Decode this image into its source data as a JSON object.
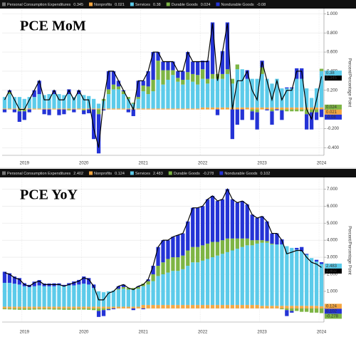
{
  "chart_data": [
    {
      "type": "bar",
      "title": "PCE MoM",
      "ylabel": "Percent/Percentage Point",
      "categories": [
        null,
        null,
        null,
        null,
        "2019",
        null,
        null,
        null,
        null,
        null,
        null,
        null,
        null,
        null,
        null,
        null,
        "2020",
        null,
        null,
        null,
        null,
        null,
        null,
        null,
        null,
        null,
        null,
        null,
        "2021",
        null,
        null,
        null,
        null,
        null,
        null,
        null,
        null,
        null,
        null,
        null,
        "2022",
        null,
        null,
        null,
        null,
        null,
        null,
        null,
        null,
        null,
        null,
        null,
        "2023",
        null,
        null,
        null,
        null,
        null,
        null,
        null,
        null,
        null,
        null,
        null,
        "2024"
      ],
      "ylim": [
        -0.48,
        1.04
      ],
      "yticks": [
        {
          "value": -0.4,
          "label": "-0.400"
        },
        {
          "value": -0.2,
          "label": "-0.200"
        },
        {
          "value": 0,
          "label": "0.000"
        },
        {
          "value": 0.2,
          "label": "0.200"
        },
        {
          "value": 0.4,
          "label": "0.400"
        },
        {
          "value": 0.6,
          "label": "0.600"
        },
        {
          "value": 0.8,
          "label": "0.800"
        },
        {
          "value": 1,
          "label": "1.000"
        }
      ],
      "grid": true,
      "series": [
        {
          "name": "Personal Consumption Expenditures",
          "kind": "line",
          "color": "#000000",
          "values": [
            0.1,
            0.2,
            0.1,
            0.0,
            0.0,
            0.1,
            0.2,
            0.3,
            0.1,
            0.1,
            0.2,
            0.1,
            0.1,
            0.2,
            0.1,
            0.2,
            0.1,
            0.1,
            -0.2,
            -0.4,
            0.1,
            0.4,
            0.4,
            0.3,
            0.2,
            0.1,
            0.0,
            0.3,
            0.3,
            0.4,
            0.6,
            0.6,
            0.5,
            0.5,
            0.5,
            0.4,
            0.4,
            0.6,
            0.5,
            0.5,
            0.5,
            0.5,
            0.9,
            0.3,
            0.6,
            0.9,
            0.0,
            0.3,
            0.3,
            0.4,
            0.2,
            0.1,
            0.5,
            0.3,
            0.1,
            0.3,
            0.1,
            0.2,
            0.2,
            0.4,
            0.4,
            0.0,
            -0.1,
            0.1,
            0.345
          ]
        },
        {
          "name": "Nonprofits",
          "color": "#f5a742",
          "values": [
            0.01,
            0.01,
            0.01,
            0.01,
            0.01,
            0.01,
            0.01,
            0.01,
            0.01,
            0.01,
            0.01,
            0.01,
            0.01,
            0.01,
            0.01,
            0.01,
            0.01,
            0.01,
            0.01,
            0.01,
            0.01,
            0.01,
            0.01,
            0.01,
            0.01,
            0.01,
            0.01,
            0.01,
            0.01,
            0.01,
            0.01,
            0.01,
            0.01,
            0.01,
            0.01,
            0.01,
            0.01,
            0.01,
            0.01,
            0.01,
            0.02,
            0.02,
            0.02,
            0.02,
            0.02,
            0.02,
            0.02,
            0.02,
            0.02,
            0.02,
            0.02,
            0.02,
            0.02,
            0.02,
            0.02,
            0.02,
            0.02,
            0.02,
            0.02,
            0.02,
            0.02,
            0.02,
            0.02,
            0.02,
            0.021
          ]
        },
        {
          "name": "Services",
          "color": "#5ccbea",
          "values": [
            0.12,
            0.15,
            0.12,
            0.12,
            0.1,
            0.12,
            0.12,
            0.15,
            0.14,
            0.15,
            0.15,
            0.15,
            0.14,
            0.15,
            0.12,
            0.15,
            0.14,
            0.13,
            0.1,
            0.05,
            0.08,
            0.15,
            0.2,
            0.2,
            0.15,
            0.1,
            0.05,
            0.1,
            0.18,
            0.15,
            0.18,
            0.3,
            0.25,
            0.3,
            0.35,
            0.28,
            0.25,
            0.3,
            0.28,
            0.25,
            0.3,
            0.25,
            0.3,
            0.3,
            0.3,
            0.35,
            0.25,
            0.4,
            0.4,
            0.3,
            0.3,
            0.3,
            0.35,
            0.3,
            0.25,
            0.3,
            0.2,
            0.2,
            0.2,
            0.3,
            0.3,
            0.2,
            0.1,
            0.2,
            0.38
          ]
        },
        {
          "name": "Durable Goods",
          "color": "#7db544",
          "values": [
            0.0,
            0.02,
            0.0,
            -0.02,
            -0.02,
            0.0,
            0.0,
            0.0,
            0.0,
            0.0,
            0.0,
            0.0,
            0.0,
            -0.01,
            0.0,
            0.0,
            -0.01,
            0.0,
            0.0,
            -0.05,
            0.02,
            0.05,
            0.05,
            0.03,
            0.03,
            0.02,
            0.01,
            0.02,
            0.06,
            0.08,
            0.12,
            0.2,
            0.15,
            0.1,
            0.05,
            0.04,
            0.05,
            0.08,
            0.08,
            0.1,
            0.1,
            0.05,
            0.05,
            0.05,
            0.05,
            0.05,
            0.05,
            0.05,
            0.0,
            0.0,
            -0.02,
            -0.03,
            0.07,
            0.0,
            -0.02,
            0.0,
            -0.01,
            -0.02,
            -0.02,
            -0.02,
            -0.02,
            -0.05,
            -0.03,
            -0.03,
            0.024
          ]
        },
        {
          "name": "Nondurable Goods",
          "color": "#2433d6",
          "values": [
            -0.03,
            0.02,
            -0.03,
            -0.11,
            -0.09,
            -0.03,
            0.07,
            0.14,
            -0.05,
            -0.06,
            0.04,
            -0.06,
            -0.05,
            0.05,
            -0.03,
            0.04,
            -0.04,
            -0.04,
            -0.31,
            -0.41,
            -0.01,
            0.19,
            0.14,
            0.06,
            0.01,
            -0.03,
            -0.07,
            0.17,
            0.05,
            0.16,
            0.29,
            0.09,
            0.09,
            0.09,
            0.09,
            0.07,
            0.09,
            0.21,
            0.13,
            0.14,
            0.09,
            0.19,
            0.54,
            -0.06,
            0.24,
            0.49,
            -0.31,
            -0.16,
            -0.11,
            0.09,
            -0.09,
            -0.18,
            0.07,
            -0.01,
            -0.14,
            -0.01,
            -0.1,
            0.01,
            0.01,
            0.11,
            0.11,
            -0.16,
            -0.18,
            -0.08,
            -0.08
          ]
        }
      ]
    },
    {
      "type": "bar",
      "title": "PCE YoY",
      "ylabel": "Percent/Percentage Point",
      "categories": [
        null,
        null,
        null,
        null,
        "2019",
        null,
        null,
        null,
        null,
        null,
        null,
        null,
        null,
        null,
        null,
        null,
        "2020",
        null,
        null,
        null,
        null,
        null,
        null,
        null,
        null,
        null,
        null,
        null,
        "2021",
        null,
        null,
        null,
        null,
        null,
        null,
        null,
        null,
        null,
        null,
        null,
        "2022",
        null,
        null,
        null,
        null,
        null,
        null,
        null,
        null,
        null,
        null,
        null,
        "2023",
        null,
        null,
        null,
        null,
        null,
        null,
        null,
        null,
        null,
        null,
        null,
        "2024"
      ],
      "ylim": [
        -0.8,
        7.6
      ],
      "yticks": [
        {
          "value": 0,
          "label": "0.000"
        },
        {
          "value": 1,
          "label": "1.000"
        },
        {
          "value": 2,
          "label": "2.000"
        },
        {
          "value": 3,
          "label": "3.000"
        },
        {
          "value": 4,
          "label": "4.000"
        },
        {
          "value": 5,
          "label": "5.000"
        },
        {
          "value": 6,
          "label": "6.000"
        },
        {
          "value": 7,
          "label": "7.000"
        }
      ],
      "grid": true,
      "series": [
        {
          "name": "Personal Consumption Expenditures",
          "kind": "line",
          "color": "#000000",
          "values": [
            2.1,
            2.0,
            1.8,
            1.7,
            1.4,
            1.3,
            1.5,
            1.6,
            1.4,
            1.4,
            1.4,
            1.4,
            1.3,
            1.4,
            1.5,
            1.6,
            1.8,
            1.7,
            1.3,
            0.5,
            0.5,
            0.9,
            1.0,
            1.3,
            1.4,
            1.2,
            1.1,
            1.3,
            1.4,
            1.7,
            2.5,
            3.6,
            4.0,
            4.0,
            4.2,
            4.3,
            4.4,
            5.1,
            5.9,
            5.9,
            6.0,
            6.4,
            6.6,
            6.3,
            6.4,
            7.0,
            6.4,
            6.2,
            6.3,
            6.1,
            5.5,
            5.3,
            5.4,
            5.1,
            4.4,
            4.4,
            4.0,
            3.2,
            3.3,
            3.4,
            3.4,
            3.0,
            2.7,
            2.6,
            2.402
          ]
        },
        {
          "name": "Nonprofits",
          "color": "#f5a742",
          "values": [
            0.1,
            0.1,
            0.1,
            0.1,
            0.1,
            0.1,
            0.1,
            0.1,
            0.1,
            0.1,
            0.1,
            0.1,
            0.1,
            0.1,
            0.1,
            0.1,
            0.1,
            0.1,
            0.1,
            0.1,
            0.1,
            0.1,
            0.1,
            0.1,
            0.1,
            0.1,
            0.1,
            0.1,
            0.2,
            0.2,
            0.2,
            0.2,
            0.2,
            0.2,
            0.2,
            0.2,
            0.2,
            0.2,
            0.2,
            0.2,
            0.2,
            0.2,
            0.2,
            0.2,
            0.2,
            0.2,
            0.2,
            0.2,
            0.2,
            0.2,
            0.2,
            0.2,
            0.15,
            0.15,
            0.15,
            0.15,
            0.15,
            0.15,
            0.15,
            0.15,
            0.15,
            0.15,
            0.15,
            0.15,
            0.124
          ]
        },
        {
          "name": "Services",
          "color": "#5ccbea",
          "values": [
            1.4,
            1.4,
            1.35,
            1.3,
            1.2,
            1.15,
            1.2,
            1.25,
            1.2,
            1.2,
            1.2,
            1.25,
            1.2,
            1.25,
            1.25,
            1.3,
            1.35,
            1.3,
            1.1,
            0.9,
            0.85,
            0.9,
            0.95,
            1.0,
            1.05,
            1.0,
            1.0,
            1.05,
            1.1,
            1.2,
            1.4,
            1.7,
            1.8,
            1.9,
            2.0,
            2.0,
            2.1,
            2.3,
            2.5,
            2.5,
            2.6,
            2.7,
            2.8,
            2.9,
            3.0,
            3.1,
            3.2,
            3.3,
            3.4,
            3.5,
            3.5,
            3.6,
            3.7,
            3.7,
            3.6,
            3.6,
            3.6,
            3.5,
            3.4,
            3.3,
            3.2,
            3.0,
            2.8,
            2.6,
            2.483
          ]
        },
        {
          "name": "Durable Goods",
          "color": "#7db544",
          "values": [
            -0.05,
            -0.06,
            -0.07,
            -0.08,
            -0.08,
            -0.08,
            -0.07,
            -0.06,
            -0.06,
            -0.06,
            -0.07,
            -0.07,
            -0.08,
            -0.08,
            -0.08,
            -0.07,
            -0.07,
            -0.08,
            -0.1,
            -0.15,
            -0.1,
            -0.05,
            0.0,
            0.05,
            0.1,
            0.1,
            0.1,
            0.1,
            0.15,
            0.2,
            0.4,
            0.6,
            0.7,
            0.8,
            0.8,
            0.8,
            0.8,
            0.9,
            0.9,
            0.9,
            0.9,
            0.9,
            0.9,
            0.8,
            0.8,
            0.8,
            0.7,
            0.6,
            0.5,
            0.4,
            0.3,
            0.2,
            0.15,
            0.1,
            0.05,
            0.0,
            -0.05,
            -0.1,
            -0.15,
            -0.15,
            -0.2,
            -0.2,
            -0.25,
            -0.25,
            -0.278
          ]
        },
        {
          "name": "Nondurable Goods",
          "color": "#2433d6",
          "values": [
            0.65,
            0.56,
            0.42,
            0.38,
            0.18,
            0.13,
            0.27,
            0.31,
            0.16,
            0.16,
            0.17,
            0.12,
            0.08,
            0.13,
            0.23,
            0.27,
            0.42,
            0.38,
            0.2,
            -0.35,
            -0.35,
            -0.05,
            -0.05,
            0.15,
            0.15,
            0.0,
            -0.1,
            0.05,
            -0.05,
            0.1,
            0.5,
            1.1,
            1.3,
            1.1,
            1.2,
            1.3,
            1.3,
            1.7,
            2.3,
            2.3,
            2.3,
            2.6,
            2.7,
            2.4,
            2.4,
            2.9,
            2.3,
            2.1,
            2.2,
            2.0,
            1.5,
            1.3,
            1.4,
            1.15,
            0.6,
            0.65,
            0.3,
            -0.35,
            -0.1,
            0.1,
            0.25,
            0.05,
            0.0,
            0.1,
            0.102
          ]
        }
      ]
    }
  ]
}
